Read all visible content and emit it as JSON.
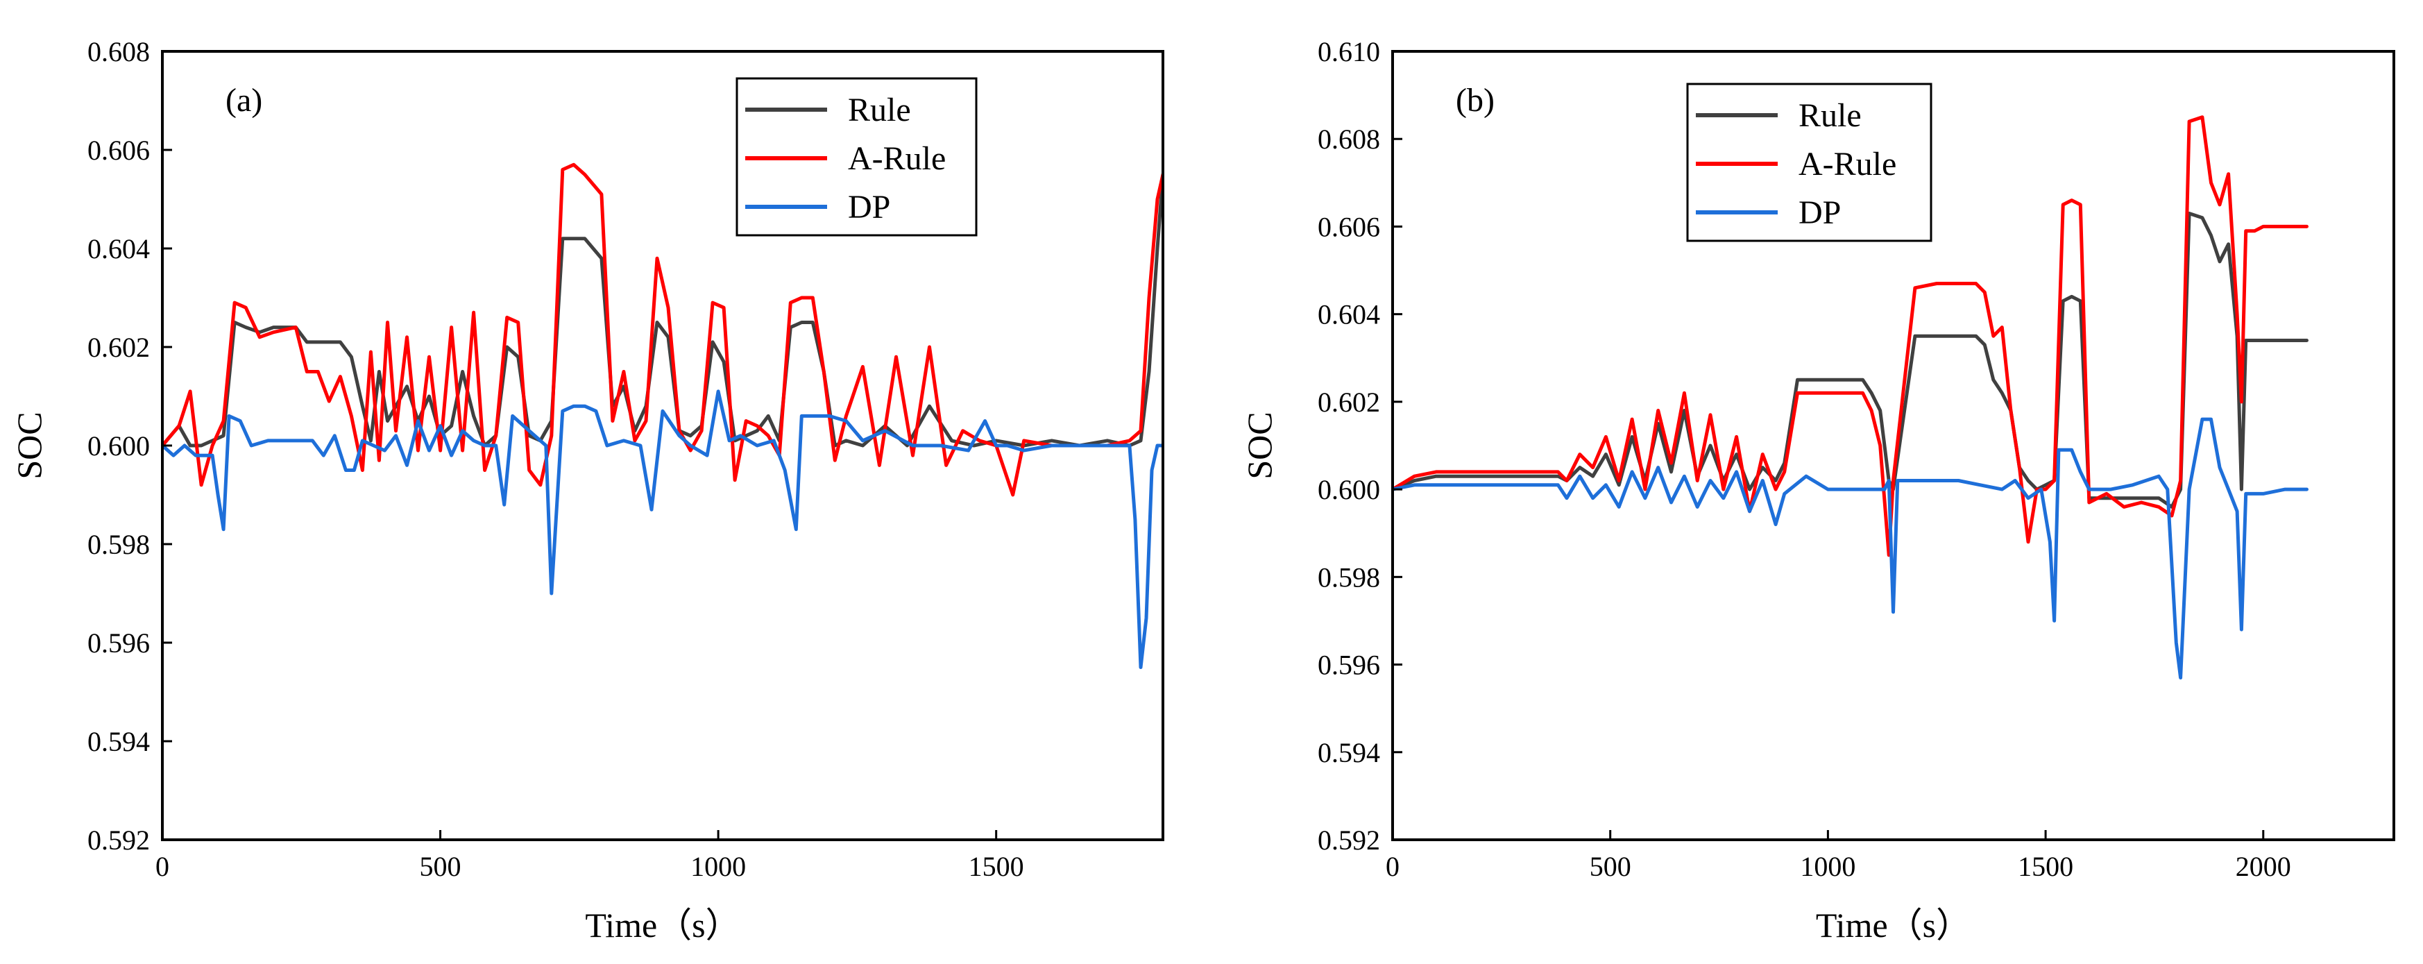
{
  "chart_data": [
    {
      "type": "line",
      "panel_label": "(a)",
      "xlabel": "Time（s）",
      "ylabel": "SOC",
      "xlim": [
        0,
        1800
      ],
      "ylim": [
        0.592,
        0.608
      ],
      "xticks": [
        0,
        500,
        1000,
        1500
      ],
      "xtick_labels": [
        "0",
        "500",
        "1000",
        "1500"
      ],
      "yticks": [
        0.592,
        0.594,
        0.596,
        0.598,
        0.6,
        0.602,
        0.604,
        0.606,
        0.608
      ],
      "ytick_labels": [
        "0.592",
        "0.594",
        "0.596",
        "0.598",
        "0.600",
        "0.602",
        "0.604",
        "0.606",
        "0.608"
      ],
      "legend_position": "top-right",
      "series": [
        {
          "name": "Rule",
          "color": "#404040",
          "x": [
            0,
            30,
            50,
            70,
            110,
            130,
            150,
            175,
            200,
            240,
            260,
            280,
            300,
            320,
            340,
            360,
            375,
            390,
            405,
            420,
            440,
            460,
            480,
            500,
            520,
            540,
            560,
            580,
            600,
            620,
            640,
            660,
            680,
            700,
            720,
            740,
            760,
            790,
            810,
            830,
            850,
            870,
            890,
            910,
            930,
            950,
            970,
            990,
            1010,
            1030,
            1050,
            1070,
            1090,
            1110,
            1130,
            1150,
            1170,
            1190,
            1210,
            1230,
            1260,
            1300,
            1340,
            1380,
            1420,
            1460,
            1500,
            1550,
            1600,
            1650,
            1700,
            1740,
            1760,
            1775,
            1790,
            1800
          ],
          "values": [
            0.6,
            0.6004,
            0.6,
            0.6,
            0.6002,
            0.6025,
            0.6024,
            0.6023,
            0.6024,
            0.6024,
            0.6021,
            0.6021,
            0.6021,
            0.6021,
            0.6018,
            0.6008,
            0.6001,
            0.6015,
            0.6005,
            0.6008,
            0.6012,
            0.6005,
            0.601,
            0.6002,
            0.6004,
            0.6015,
            0.6006,
            0.6,
            0.6002,
            0.602,
            0.6018,
            0.6002,
            0.6001,
            0.6005,
            0.6042,
            0.6042,
            0.6042,
            0.6038,
            0.6008,
            0.6012,
            0.6003,
            0.6008,
            0.6025,
            0.6022,
            0.6003,
            0.6002,
            0.6004,
            0.6021,
            0.6017,
            0.6001,
            0.6002,
            0.6003,
            0.6006,
            0.6001,
            0.6024,
            0.6025,
            0.6025,
            0.6015,
            0.6,
            0.6001,
            0.6,
            0.6004,
            0.6,
            0.6008,
            0.6001,
            0.6,
            0.6001,
            0.6,
            0.6001,
            0.6,
            0.6001,
            0.6,
            0.6001,
            0.6015,
            0.604,
            0.6055
          ]
        },
        {
          "name": "A-Rule",
          "color": "#ff0000",
          "x": [
            0,
            30,
            50,
            70,
            90,
            110,
            130,
            150,
            175,
            200,
            240,
            260,
            280,
            300,
            320,
            340,
            360,
            375,
            390,
            405,
            420,
            440,
            460,
            480,
            500,
            520,
            540,
            560,
            580,
            600,
            620,
            640,
            660,
            680,
            700,
            720,
            740,
            760,
            790,
            810,
            830,
            850,
            870,
            890,
            910,
            930,
            950,
            970,
            990,
            1010,
            1030,
            1050,
            1070,
            1090,
            1110,
            1130,
            1150,
            1170,
            1190,
            1210,
            1230,
            1260,
            1290,
            1320,
            1350,
            1380,
            1410,
            1440,
            1470,
            1500,
            1530,
            1550,
            1600,
            1650,
            1700,
            1740,
            1760,
            1775,
            1790,
            1800
          ],
          "values": [
            0.6,
            0.6004,
            0.6011,
            0.5992,
            0.6,
            0.6005,
            0.6029,
            0.6028,
            0.6022,
            0.6023,
            0.6024,
            0.6015,
            0.6015,
            0.6009,
            0.6014,
            0.6006,
            0.5995,
            0.6019,
            0.5997,
            0.6025,
            0.6003,
            0.6022,
            0.5999,
            0.6018,
            0.5999,
            0.6024,
            0.5999,
            0.6027,
            0.5995,
            0.6002,
            0.6026,
            0.6025,
            0.5995,
            0.5992,
            0.6002,
            0.6056,
            0.6057,
            0.6055,
            0.6051,
            0.6005,
            0.6015,
            0.6001,
            0.6005,
            0.6038,
            0.6028,
            0.6003,
            0.5999,
            0.6003,
            0.6029,
            0.6028,
            0.5993,
            0.6005,
            0.6004,
            0.6002,
            0.5998,
            0.6029,
            0.603,
            0.603,
            0.6015,
            0.5997,
            0.6006,
            0.6016,
            0.5996,
            0.6018,
            0.5998,
            0.602,
            0.5996,
            0.6003,
            0.6001,
            0.6,
            0.599,
            0.6001,
            0.6,
            0.6,
            0.6,
            0.6001,
            0.6003,
            0.603,
            0.605,
            0.6055
          ]
        },
        {
          "name": "DP",
          "color": "#1e6fd9",
          "x": [
            0,
            20,
            40,
            60,
            90,
            100,
            110,
            120,
            140,
            160,
            190,
            230,
            270,
            290,
            310,
            330,
            345,
            360,
            380,
            400,
            420,
            440,
            460,
            480,
            500,
            520,
            540,
            560,
            580,
            600,
            615,
            630,
            660,
            690,
            700,
            720,
            740,
            760,
            780,
            800,
            830,
            860,
            880,
            900,
            930,
            950,
            980,
            1000,
            1020,
            1040,
            1070,
            1100,
            1120,
            1140,
            1150,
            1170,
            1200,
            1230,
            1260,
            1300,
            1350,
            1400,
            1450,
            1480,
            1500,
            1520,
            1550,
            1600,
            1650,
            1700,
            1740,
            1750,
            1760,
            1770,
            1780,
            1790,
            1800
          ],
          "values": [
            0.6,
            0.5998,
            0.6,
            0.5998,
            0.5998,
            0.599,
            0.5983,
            0.6006,
            0.6005,
            0.6,
            0.6001,
            0.6001,
            0.6001,
            0.5998,
            0.6002,
            0.5995,
            0.5995,
            0.6001,
            0.6,
            0.5999,
            0.6002,
            0.5996,
            0.6005,
            0.5999,
            0.6004,
            0.5998,
            0.6003,
            0.6001,
            0.6,
            0.6,
            0.5988,
            0.6006,
            0.6003,
            0.6,
            0.597,
            0.6007,
            0.6008,
            0.6008,
            0.6007,
            0.6,
            0.6001,
            0.6,
            0.5987,
            0.6007,
            0.6002,
            0.6,
            0.5998,
            0.6011,
            0.6001,
            0.6002,
            0.6,
            0.6001,
            0.5995,
            0.5983,
            0.6006,
            0.6006,
            0.6006,
            0.6005,
            0.6001,
            0.6003,
            0.6,
            0.6,
            0.5999,
            0.6005,
            0.6,
            0.6,
            0.5999,
            0.6,
            0.6,
            0.6,
            0.6,
            0.5985,
            0.5955,
            0.5965,
            0.5995,
            0.6,
            0.6
          ]
        }
      ]
    },
    {
      "type": "line",
      "panel_label": "(b)",
      "xlabel": "Time（s）",
      "ylabel": "SOC",
      "xlim": [
        0,
        2300
      ],
      "ylim": [
        0.592,
        0.61
      ],
      "xticks": [
        0,
        500,
        1000,
        1500,
        2000
      ],
      "xtick_labels": [
        "0",
        "500",
        "1000",
        "1500",
        "2000"
      ],
      "yticks": [
        0.592,
        0.594,
        0.596,
        0.598,
        0.6,
        0.602,
        0.604,
        0.606,
        0.608,
        0.61
      ],
      "ytick_labels": [
        "0.592",
        "0.594",
        "0.596",
        "0.598",
        "0.600",
        "0.602",
        "0.604",
        "0.606",
        "0.608",
        "0.610"
      ],
      "legend_position": "top-center",
      "series": [
        {
          "name": "Rule",
          "color": "#404040",
          "x": [
            0,
            50,
            100,
            200,
            300,
            380,
            400,
            430,
            460,
            490,
            520,
            550,
            580,
            610,
            640,
            670,
            700,
            730,
            760,
            790,
            820,
            850,
            880,
            900,
            930,
            960,
            1000,
            1040,
            1080,
            1100,
            1120,
            1140,
            1150,
            1200,
            1250,
            1300,
            1340,
            1360,
            1380,
            1400,
            1420,
            1440,
            1460,
            1480,
            1500,
            1520,
            1540,
            1560,
            1580,
            1600,
            1640,
            1680,
            1720,
            1760,
            1790,
            1810,
            1830,
            1860,
            1880,
            1900,
            1920,
            1940,
            1950,
            1960,
            1980,
            2000,
            2050,
            2100
          ],
          "values": [
            0.6,
            0.6002,
            0.6003,
            0.6003,
            0.6003,
            0.6003,
            0.6002,
            0.6005,
            0.6003,
            0.6008,
            0.6001,
            0.6012,
            0.6002,
            0.6015,
            0.6004,
            0.6018,
            0.6003,
            0.601,
            0.6002,
            0.6008,
            0.6,
            0.6005,
            0.6002,
            0.6006,
            0.6025,
            0.6025,
            0.6025,
            0.6025,
            0.6025,
            0.6022,
            0.6018,
            0.6002,
            0.6,
            0.6035,
            0.6035,
            0.6035,
            0.6035,
            0.6033,
            0.6025,
            0.6022,
            0.6018,
            0.6005,
            0.6002,
            0.6,
            0.6001,
            0.6002,
            0.6043,
            0.6044,
            0.6043,
            0.5998,
            0.5998,
            0.5998,
            0.5998,
            0.5998,
            0.5996,
            0.6,
            0.6063,
            0.6062,
            0.6058,
            0.6052,
            0.6056,
            0.6035,
            0.6,
            0.6034,
            0.6034,
            0.6034,
            0.6034,
            0.6034
          ]
        },
        {
          "name": "A-Rule",
          "color": "#ff0000",
          "x": [
            0,
            50,
            100,
            200,
            300,
            380,
            400,
            430,
            460,
            490,
            520,
            550,
            580,
            610,
            640,
            670,
            700,
            730,
            760,
            790,
            820,
            850,
            880,
            900,
            930,
            960,
            1000,
            1040,
            1080,
            1100,
            1120,
            1140,
            1150,
            1200,
            1250,
            1300,
            1340,
            1360,
            1380,
            1400,
            1420,
            1440,
            1460,
            1480,
            1500,
            1520,
            1540,
            1560,
            1580,
            1600,
            1640,
            1680,
            1720,
            1760,
            1790,
            1810,
            1830,
            1860,
            1880,
            1900,
            1920,
            1940,
            1950,
            1960,
            1980,
            2000,
            2050,
            2100
          ],
          "values": [
            0.6,
            0.6003,
            0.6004,
            0.6004,
            0.6004,
            0.6004,
            0.6002,
            0.6008,
            0.6005,
            0.6012,
            0.6002,
            0.6016,
            0.6,
            0.6018,
            0.6006,
            0.6022,
            0.6002,
            0.6017,
            0.6,
            0.6012,
            0.5995,
            0.6008,
            0.6,
            0.6004,
            0.6022,
            0.6022,
            0.6022,
            0.6022,
            0.6022,
            0.6018,
            0.601,
            0.5985,
            0.6002,
            0.6046,
            0.6047,
            0.6047,
            0.6047,
            0.6045,
            0.6035,
            0.6037,
            0.6018,
            0.6005,
            0.5988,
            0.6,
            0.6,
            0.6002,
            0.6065,
            0.6066,
            0.6065,
            0.5997,
            0.5999,
            0.5996,
            0.5997,
            0.5996,
            0.5994,
            0.6002,
            0.6084,
            0.6085,
            0.607,
            0.6065,
            0.6072,
            0.604,
            0.602,
            0.6059,
            0.6059,
            0.606,
            0.606,
            0.606
          ]
        },
        {
          "name": "DP",
          "color": "#1e6fd9",
          "x": [
            0,
            50,
            100,
            200,
            300,
            380,
            400,
            430,
            460,
            490,
            520,
            550,
            580,
            610,
            640,
            670,
            700,
            730,
            760,
            790,
            820,
            850,
            880,
            900,
            950,
            1000,
            1050,
            1100,
            1130,
            1140,
            1150,
            1160,
            1200,
            1250,
            1300,
            1350,
            1400,
            1430,
            1460,
            1490,
            1510,
            1520,
            1530,
            1560,
            1580,
            1600,
            1650,
            1700,
            1760,
            1780,
            1800,
            1810,
            1830,
            1860,
            1880,
            1900,
            1920,
            1940,
            1950,
            1960,
            1980,
            2000,
            2050,
            2100
          ],
          "values": [
            0.6,
            0.6001,
            0.6001,
            0.6001,
            0.6001,
            0.6001,
            0.5998,
            0.6003,
            0.5998,
            0.6001,
            0.5996,
            0.6004,
            0.5998,
            0.6005,
            0.5997,
            0.6003,
            0.5996,
            0.6002,
            0.5998,
            0.6004,
            0.5995,
            0.6002,
            0.5992,
            0.5999,
            0.6003,
            0.6,
            0.6,
            0.6,
            0.6,
            0.6002,
            0.5972,
            0.6002,
            0.6002,
            0.6002,
            0.6002,
            0.6001,
            0.6,
            0.6002,
            0.5998,
            0.6,
            0.5988,
            0.597,
            0.6009,
            0.6009,
            0.6004,
            0.6,
            0.6,
            0.6001,
            0.6003,
            0.6,
            0.5965,
            0.5957,
            0.6,
            0.6016,
            0.6016,
            0.6005,
            0.6,
            0.5995,
            0.5968,
            0.5999,
            0.5999,
            0.5999,
            0.6,
            0.6
          ]
        }
      ]
    }
  ]
}
